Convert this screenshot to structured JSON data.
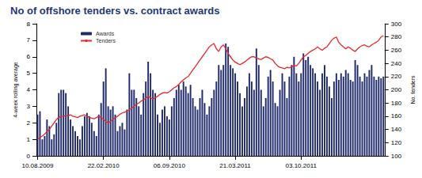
{
  "chart_data": {
    "type": "bar",
    "title": "No of offshore tenders vs. contract awards",
    "categories": [
      "10.08.2009",
      null,
      null,
      null,
      null,
      null,
      null,
      null,
      null,
      null,
      null,
      null,
      null,
      null,
      null,
      null,
      null,
      null,
      null,
      null,
      null,
      null,
      null,
      null,
      null,
      null,
      null,
      null,
      "22.02.2010",
      null,
      null,
      null,
      null,
      null,
      null,
      null,
      null,
      null,
      null,
      null,
      null,
      null,
      null,
      null,
      null,
      null,
      null,
      null,
      null,
      null,
      null,
      null,
      null,
      null,
      null,
      null,
      "06.09.2010",
      null,
      null,
      null,
      null,
      null,
      null,
      null,
      null,
      null,
      null,
      null,
      null,
      null,
      null,
      null,
      null,
      null,
      null,
      null,
      null,
      null,
      null,
      null,
      null,
      null,
      null,
      null,
      "21.03.2011",
      null,
      null,
      null,
      null,
      null,
      null,
      null,
      null,
      null,
      null,
      null,
      null,
      null,
      null,
      null,
      null,
      null,
      null,
      null,
      null,
      null,
      null,
      null,
      null,
      null,
      null,
      null,
      "03.10.2011",
      null,
      null,
      null,
      null,
      null,
      null,
      null,
      null,
      null,
      null,
      null,
      null,
      null,
      null,
      null,
      null,
      null,
      null,
      null,
      null,
      null,
      null,
      null,
      null,
      null,
      null,
      null,
      null,
      null,
      null,
      null,
      null,
      null,
      null,
      null
    ],
    "series": [
      {
        "name": "Awards",
        "type": "bar",
        "color": "#1f2a6b",
        "values": [
          2.5,
          2.7,
          1.0,
          1.2,
          2.2,
          1.8,
          1.0,
          1.3,
          2.0,
          3.8,
          4.0,
          4.0,
          3.8,
          3.0,
          2.2,
          1.8,
          1.5,
          1.2,
          1.0,
          1.8,
          2.4,
          2.6,
          2.4,
          2.0,
          1.5,
          1.2,
          2.5,
          3.2,
          4.5,
          5.3,
          3.0,
          2.8,
          3.0,
          2.5,
          1.5,
          1.8,
          2.0,
          1.6,
          2.8,
          5.0,
          4.0,
          4.0,
          3.5,
          3.0,
          2.5,
          3.8,
          4.5,
          5.7,
          5.0,
          4.0,
          3.8,
          2.5,
          2.0,
          2.8,
          3.0,
          2.4,
          2.2,
          3.0,
          3.5,
          4.0,
          4.3,
          4.0,
          4.5,
          4.2,
          3.8,
          4.3,
          3.5,
          3.0,
          2.8,
          3.5,
          4.0,
          3.2,
          2.5,
          3.0,
          3.5,
          4.0,
          4.5,
          5.5,
          5.2,
          5.5,
          6.8,
          6.6,
          5.5,
          5.3,
          5.0,
          4.5,
          3.8,
          3.0,
          3.5,
          4.2,
          5.0,
          4.5,
          4.0,
          6.5,
          5.5,
          4.0,
          3.0,
          3.5,
          4.8,
          5.2,
          4.5,
          3.2,
          3.0,
          4.0,
          5.0,
          4.5,
          3.5,
          4.8,
          5.5,
          6.0,
          5.0,
          4.5,
          5.0,
          6.2,
          5.8,
          6.0,
          5.5,
          5.3,
          5.0,
          4.5,
          4.0,
          5.0,
          5.5,
          4.8,
          4.2,
          3.5,
          4.5,
          5.0,
          4.6,
          5.0,
          4.8,
          5.2,
          5.0,
          4.6,
          4.5,
          5.8,
          5.5,
          4.8,
          4.5,
          5.0,
          4.8,
          5.2,
          5.5,
          4.8,
          4.6,
          4.8,
          4.7,
          4.8
        ]
      },
      {
        "name": "Tenders",
        "type": "line",
        "axis": "y2",
        "color": "#e8282b",
        "values": [
          125,
          128,
          130,
          133,
          137,
          140,
          145,
          150,
          155,
          158,
          160,
          160,
          161,
          161,
          162,
          160,
          159,
          158,
          160,
          161,
          162,
          160,
          158,
          157,
          156,
          158,
          160,
          158,
          155,
          152,
          150,
          152,
          155,
          158,
          160,
          163,
          165,
          166,
          168,
          170,
          172,
          175,
          178,
          180,
          183,
          185,
          187,
          190,
          188,
          186,
          188,
          190,
          193,
          195,
          196,
          195,
          197,
          200,
          203,
          205,
          208,
          212,
          215,
          218,
          220,
          225,
          230,
          235,
          240,
          245,
          250,
          255,
          260,
          265,
          268,
          270,
          262,
          258,
          265,
          268,
          262,
          255,
          250,
          245,
          242,
          240,
          238,
          240,
          242,
          245,
          248,
          250,
          250,
          248,
          247,
          246,
          248,
          250,
          249,
          247,
          245,
          240,
          236,
          234,
          233,
          232,
          234,
          233,
          235,
          237,
          236,
          240,
          245,
          250,
          252,
          255,
          258,
          260,
          262,
          265,
          262,
          260,
          263,
          265,
          270,
          275,
          278,
          280,
          272,
          268,
          265,
          262,
          265,
          263,
          260,
          258,
          262,
          265,
          267,
          268,
          266,
          265,
          268,
          270,
          272,
          275,
          280,
          282
        ]
      }
    ],
    "ylabel": "4-week rolling average",
    "y2label": "No. tenders",
    "ylim": [
      0,
      8
    ],
    "yticks": [
      0,
      1,
      2,
      3,
      4,
      5,
      6,
      7,
      8
    ],
    "y2lim": [
      100,
      300
    ],
    "y2ticks": [
      100,
      120,
      140,
      160,
      180,
      200,
      220,
      240,
      260,
      280,
      300
    ],
    "legend": "upper left",
    "grid": false
  }
}
